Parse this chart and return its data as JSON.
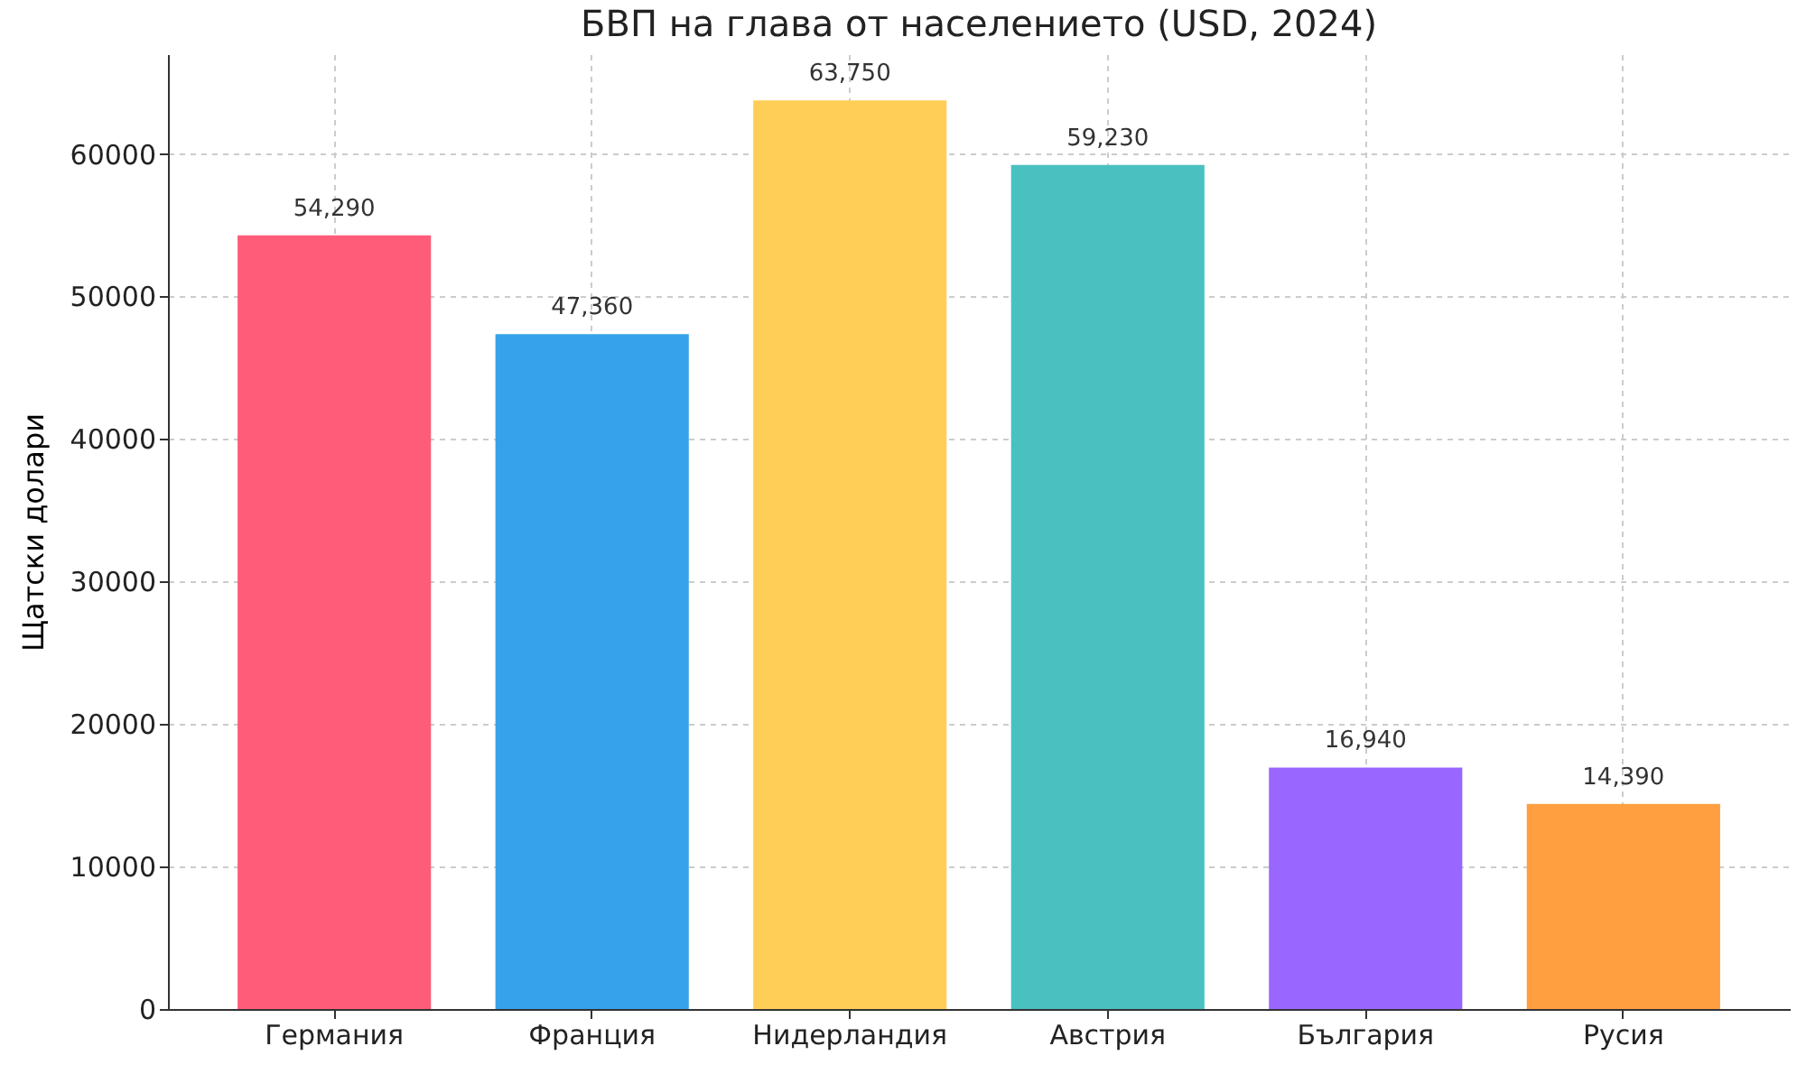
{
  "chart_data": {
    "type": "bar",
    "title": "БВП на глава от населението (USD, 2024)",
    "ylabel": "Щатски долари",
    "categories": [
      "Германия",
      "Франция",
      "Нидерландия",
      "Австрия",
      "България",
      "Русия"
    ],
    "values": [
      54290,
      47360,
      63750,
      59230,
      16940,
      14390
    ],
    "colors": [
      "#ff5c7a",
      "#36a2eb",
      "#ffce56",
      "#4bc0c0",
      "#9966ff",
      "#ff9f40"
    ],
    "value_labels": [
      "54,290",
      "47,360",
      "63,750",
      "59,230",
      "16,940",
      "14,390"
    ],
    "ylim": [
      0,
      67000
    ],
    "yticks": [
      0,
      10000,
      20000,
      30000,
      40000,
      50000,
      60000
    ],
    "grid": true
  }
}
